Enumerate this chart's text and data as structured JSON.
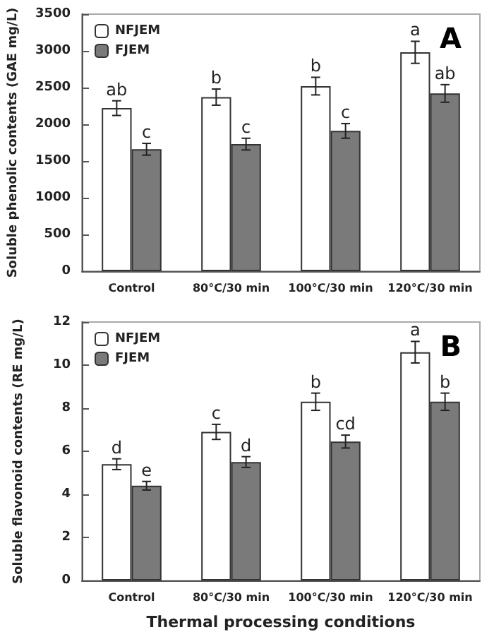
{
  "chart_data": [
    {
      "type": "bar",
      "title": "A",
      "ylabel": "Soluble phenolic contents (GAE mg/L)",
      "categories": [
        "Control",
        "80°C/30 min",
        "100°C/30 min",
        "120°C/30 min"
      ],
      "series": [
        {
          "name": "NFJEM",
          "color": "#ffffff",
          "values": [
            2220,
            2370,
            2520,
            2980
          ],
          "errors": [
            100,
            110,
            120,
            150
          ],
          "value_labels": [
            "ab",
            "b",
            "b",
            "a"
          ]
        },
        {
          "name": "FJEM",
          "color": "#7a7a7a",
          "values": [
            1660,
            1730,
            1910,
            2420
          ],
          "errors": [
            80,
            80,
            100,
            120
          ],
          "value_labels": [
            "c",
            "c",
            "c",
            "ab"
          ]
        }
      ],
      "ylim": [
        0,
        3500
      ],
      "yticks": [
        0,
        500,
        1000,
        1500,
        2000,
        2500,
        3000,
        3500
      ],
      "grid": false,
      "legend": "top left"
    },
    {
      "type": "bar",
      "title": "B",
      "xlabel": "Thermal processing conditions",
      "ylabel": "Soluble flavonoid contents (RE mg/L)",
      "categories": [
        "Control",
        "80°C/30 min",
        "100°C/30 min",
        "120°C/30 min"
      ],
      "series": [
        {
          "name": "NFJEM",
          "color": "#ffffff",
          "values": [
            5.4,
            6.9,
            8.3,
            10.6
          ],
          "errors": [
            0.25,
            0.35,
            0.4,
            0.5
          ],
          "value_labels": [
            "d",
            "c",
            "b",
            "a"
          ]
        },
        {
          "name": "FJEM",
          "color": "#7a7a7a",
          "values": [
            4.4,
            5.5,
            6.45,
            8.3
          ],
          "errors": [
            0.2,
            0.25,
            0.3,
            0.4
          ],
          "value_labels": [
            "e",
            "d",
            "cd",
            "b"
          ]
        }
      ],
      "ylim": [
        0,
        12
      ],
      "yticks": [
        0,
        2,
        4,
        6,
        8,
        10,
        12
      ],
      "grid": false,
      "legend": "top left"
    }
  ]
}
